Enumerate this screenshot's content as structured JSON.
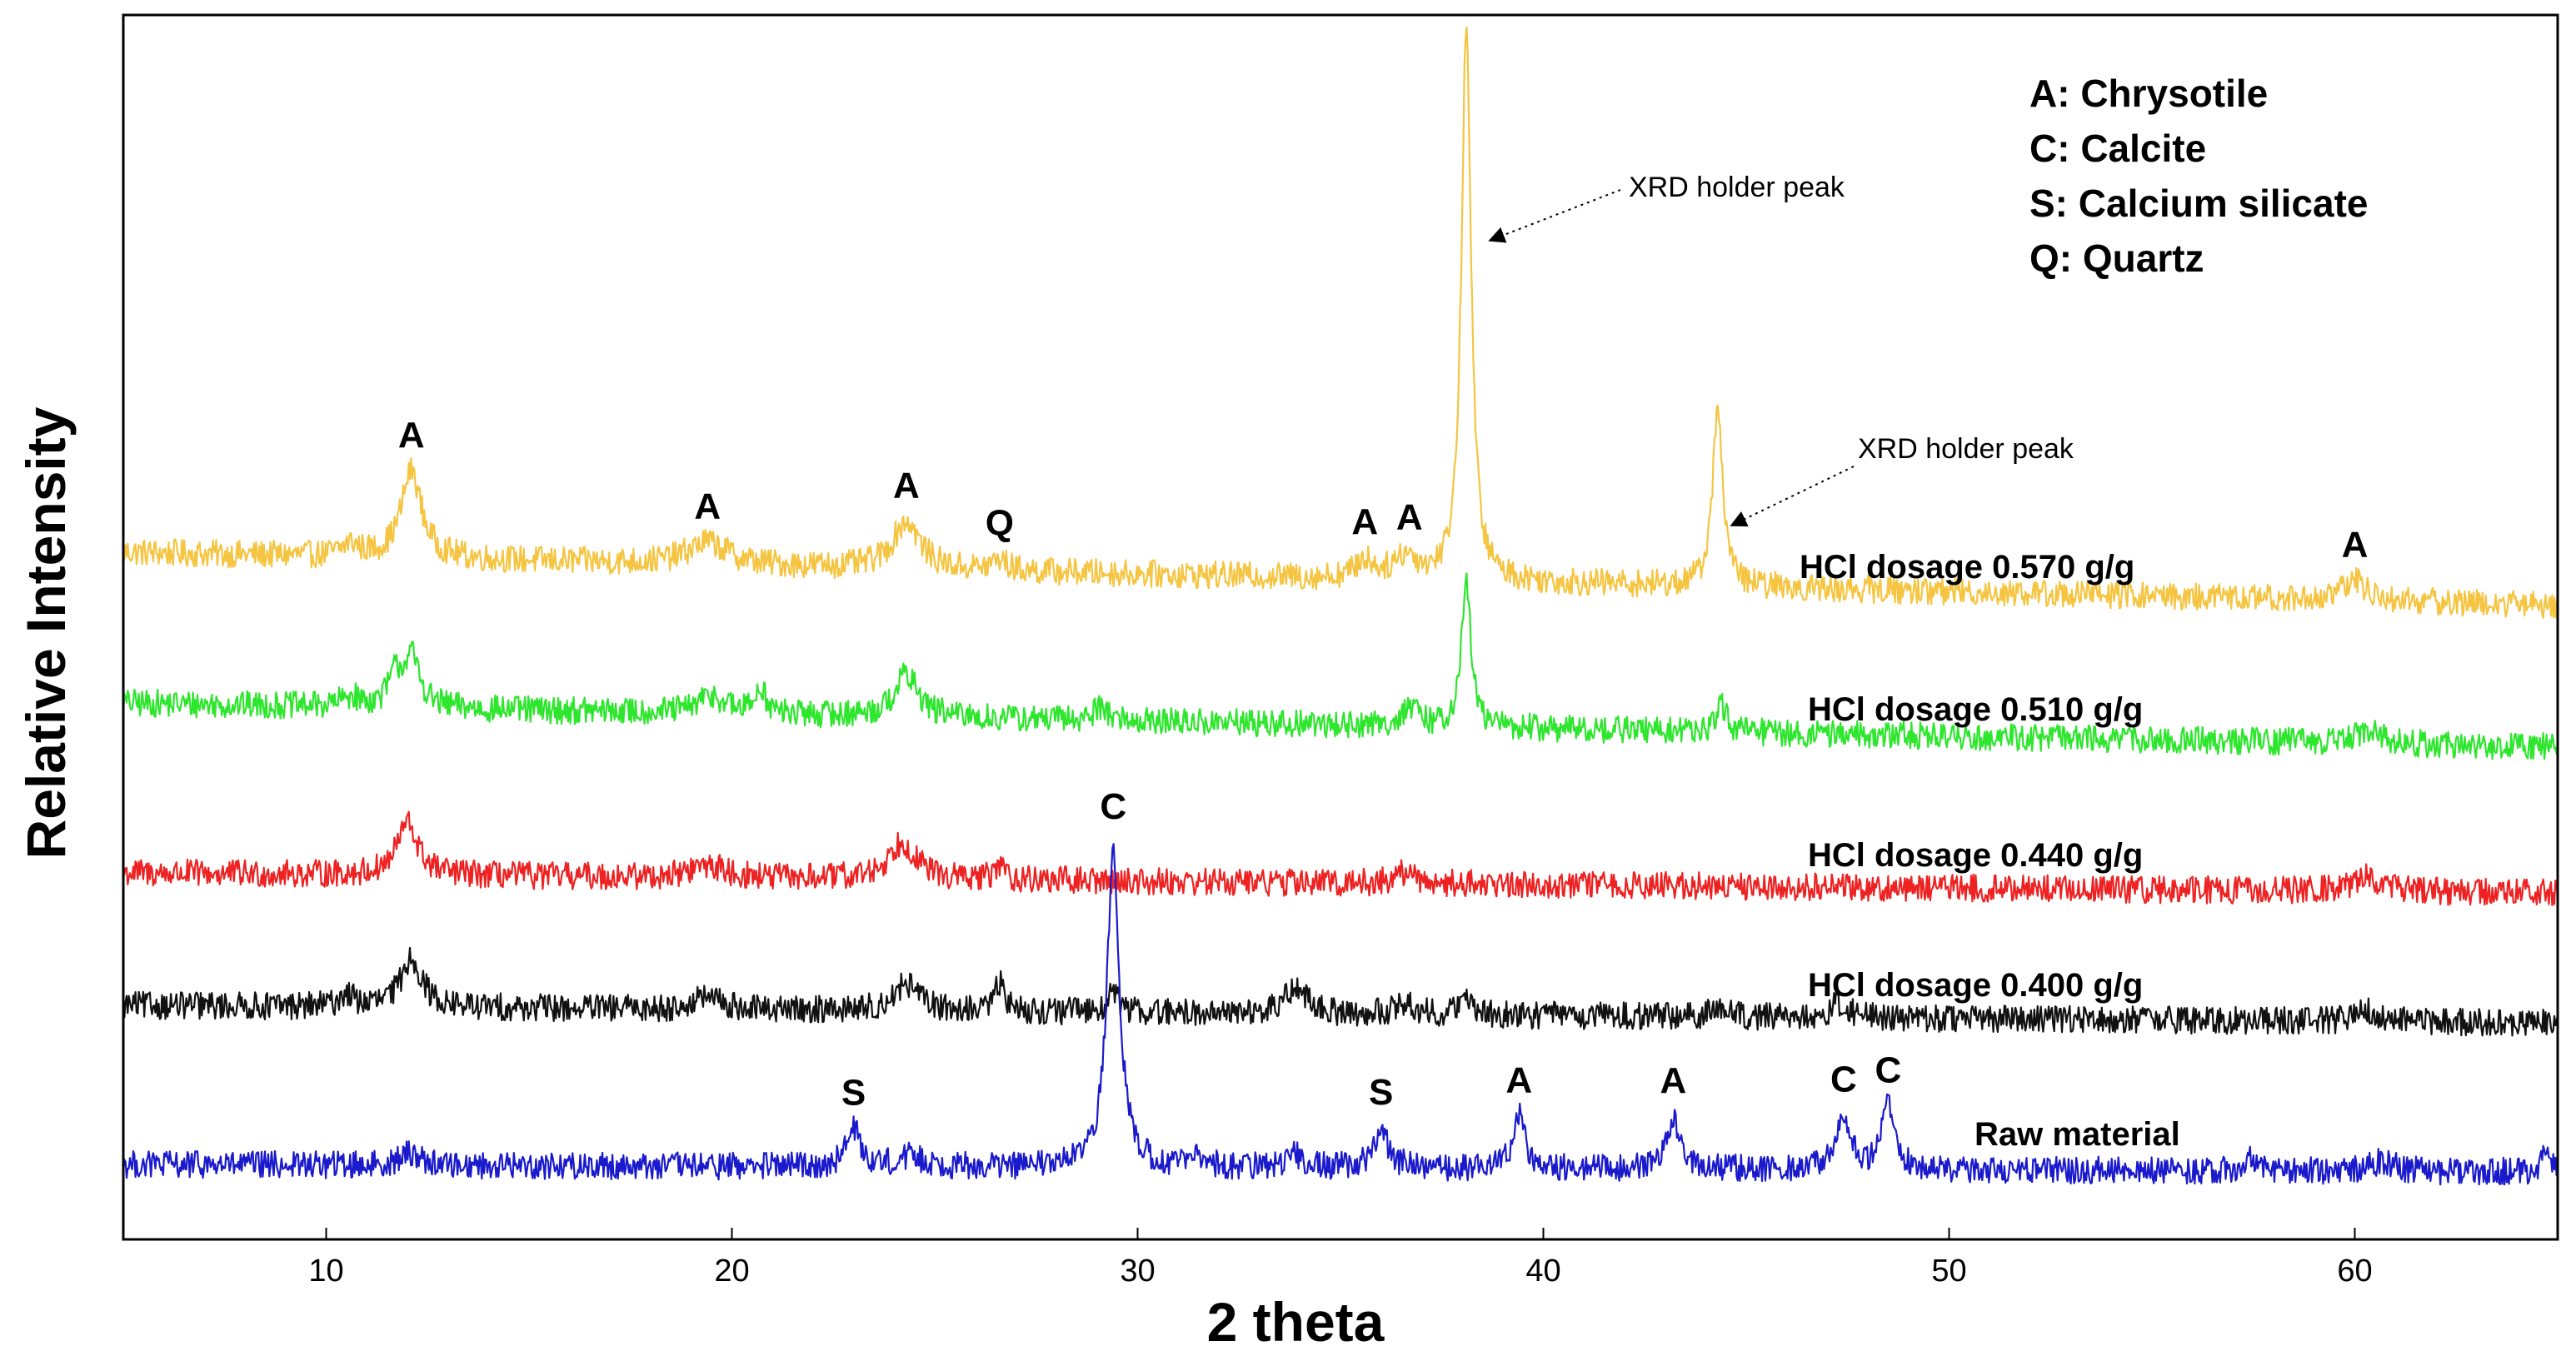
{
  "chart_data": {
    "type": "line",
    "xlabel": "2 theta",
    "ylabel": "Relative Intensity",
    "xlim": [
      5,
      65
    ],
    "xticks": [
      10,
      20,
      30,
      40,
      50,
      60
    ],
    "grid": false,
    "legend": {
      "placement": "top-right",
      "entries": [
        {
          "text": "A: Chrysotile"
        },
        {
          "text": "C: Calcite"
        },
        {
          "text": "S: Calcium silicate"
        },
        {
          "text": "Q: Quartz"
        }
      ]
    },
    "series": [
      {
        "name": "HCl dosage 0.570 g/g",
        "color": "#f5c542",
        "baseline_start": 1.95,
        "baseline_end": 0.9,
        "peaks": [
          {
            "x": 10.6,
            "h": 0.25,
            "w": 0.25
          },
          {
            "x": 12.1,
            "h": 1.75,
            "w": 0.3
          },
          {
            "x": 19.4,
            "h": 0.45,
            "w": 0.6
          },
          {
            "x": 24.3,
            "h": 0.95,
            "w": 0.4
          },
          {
            "x": 26.6,
            "h": 0.22,
            "w": 0.2
          },
          {
            "x": 35.6,
            "h": 0.35,
            "w": 0.25
          },
          {
            "x": 36.6,
            "h": 0.45,
            "w": 0.35
          },
          {
            "x": 38.1,
            "h": 11.2,
            "w": 0.14
          },
          {
            "x": 44.3,
            "h": 3.6,
            "w": 0.15
          },
          {
            "x": 60.0,
            "h": 0.4,
            "w": 0.35
          }
        ]
      },
      {
        "name": "HCl dosage 0.510 g/g",
        "color": "#2ee62e",
        "baseline_start": 1.6,
        "baseline_end": 0.72,
        "peaks": [
          {
            "x": 10.6,
            "h": 0.2,
            "w": 0.25
          },
          {
            "x": 11.7,
            "h": 0.55,
            "w": 0.2
          },
          {
            "x": 12.1,
            "h": 1.0,
            "w": 0.25
          },
          {
            "x": 19.5,
            "h": 0.35,
            "w": 0.4
          },
          {
            "x": 20.7,
            "h": 0.55,
            "w": 0.15
          },
          {
            "x": 24.3,
            "h": 0.85,
            "w": 0.35
          },
          {
            "x": 29.1,
            "h": 0.3,
            "w": 0.2
          },
          {
            "x": 36.7,
            "h": 0.35,
            "w": 0.25
          },
          {
            "x": 38.1,
            "h": 2.9,
            "w": 0.14
          },
          {
            "x": 44.4,
            "h": 0.5,
            "w": 0.15
          },
          {
            "x": 60.3,
            "h": 0.25,
            "w": 0.4
          }
        ]
      },
      {
        "name": "HCl dosage 0.440 g/g",
        "color": "#ee2222",
        "baseline_start": 0.95,
        "baseline_end": 0.55,
        "peaks": [
          {
            "x": 12.0,
            "h": 1.05,
            "w": 0.3
          },
          {
            "x": 19.4,
            "h": 0.25,
            "w": 0.5
          },
          {
            "x": 24.2,
            "h": 0.75,
            "w": 0.4
          },
          {
            "x": 26.6,
            "h": 0.3,
            "w": 0.15
          },
          {
            "x": 36.6,
            "h": 0.22,
            "w": 0.3
          },
          {
            "x": 60.3,
            "h": 0.3,
            "w": 0.4
          }
        ]
      },
      {
        "name": "HCl dosage 0.400 g/g",
        "color": "#111111",
        "baseline_start": 0.8,
        "baseline_end": 0.45,
        "peaks": [
          {
            "x": 10.5,
            "h": 0.25,
            "w": 0.2
          },
          {
            "x": 12.1,
            "h": 1.0,
            "w": 0.3
          },
          {
            "x": 19.4,
            "h": 0.25,
            "w": 0.4
          },
          {
            "x": 24.3,
            "h": 0.55,
            "w": 0.35
          },
          {
            "x": 26.6,
            "h": 0.55,
            "w": 0.15
          },
          {
            "x": 29.4,
            "h": 0.35,
            "w": 0.2
          },
          {
            "x": 33.9,
            "h": 0.55,
            "w": 0.3
          },
          {
            "x": 36.6,
            "h": 0.25,
            "w": 0.25
          },
          {
            "x": 38.1,
            "h": 0.3,
            "w": 0.2
          },
          {
            "x": 44.3,
            "h": 0.2,
            "w": 0.2
          },
          {
            "x": 47.3,
            "h": 0.3,
            "w": 0.25
          },
          {
            "x": 60.3,
            "h": 0.2,
            "w": 0.3
          }
        ]
      },
      {
        "name": "Raw material",
        "color": "#1a1acc",
        "baseline_start": 0.45,
        "baseline_end": 0.3,
        "peaks": [
          {
            "x": 12.1,
            "h": 0.25,
            "w": 0.3
          },
          {
            "x": 23.0,
            "h": 0.75,
            "w": 0.2
          },
          {
            "x": 24.4,
            "h": 0.2,
            "w": 0.4
          },
          {
            "x": 29.4,
            "h": 6.5,
            "w": 0.18
          },
          {
            "x": 31.5,
            "h": 0.15,
            "w": 0.3
          },
          {
            "x": 33.9,
            "h": 0.25,
            "w": 0.25
          },
          {
            "x": 36.0,
            "h": 0.8,
            "w": 0.2
          },
          {
            "x": 39.4,
            "h": 1.05,
            "w": 0.18
          },
          {
            "x": 43.2,
            "h": 1.05,
            "w": 0.18
          },
          {
            "x": 47.4,
            "h": 1.05,
            "w": 0.2
          },
          {
            "x": 48.5,
            "h": 1.25,
            "w": 0.2
          },
          {
            "x": 57.4,
            "h": 0.25,
            "w": 0.2
          },
          {
            "x": 60.7,
            "h": 0.22,
            "w": 0.3
          },
          {
            "x": 64.7,
            "h": 0.3,
            "w": 0.15
          }
        ]
      }
    ],
    "peak_labels": [
      {
        "series": 0,
        "x": 12.1,
        "text": "A"
      },
      {
        "series": 0,
        "x": 19.4,
        "text": "A"
      },
      {
        "series": 0,
        "x": 24.3,
        "text": "A"
      },
      {
        "series": 0,
        "x": 26.6,
        "text": "Q"
      },
      {
        "series": 0,
        "x": 35.6,
        "text": "A"
      },
      {
        "series": 0,
        "x": 36.7,
        "text": "A"
      },
      {
        "series": 0,
        "x": 60.0,
        "text": "A"
      },
      {
        "series": 4,
        "x": 29.4,
        "text": "C"
      },
      {
        "series": 4,
        "x": 23.0,
        "text": "S"
      },
      {
        "series": 4,
        "x": 36.0,
        "text": "S"
      },
      {
        "series": 4,
        "x": 39.4,
        "text": "A"
      },
      {
        "series": 4,
        "x": 43.2,
        "text": "A"
      },
      {
        "series": 4,
        "x": 47.4,
        "text": "C"
      },
      {
        "series": 4,
        "x": 48.5,
        "text": "C"
      }
    ],
    "annotations": [
      {
        "text": "XRD holder peak",
        "target_x": 38.1,
        "series": 0
      },
      {
        "text": "XRD holder peak",
        "target_x": 44.3,
        "series": 0
      }
    ]
  }
}
